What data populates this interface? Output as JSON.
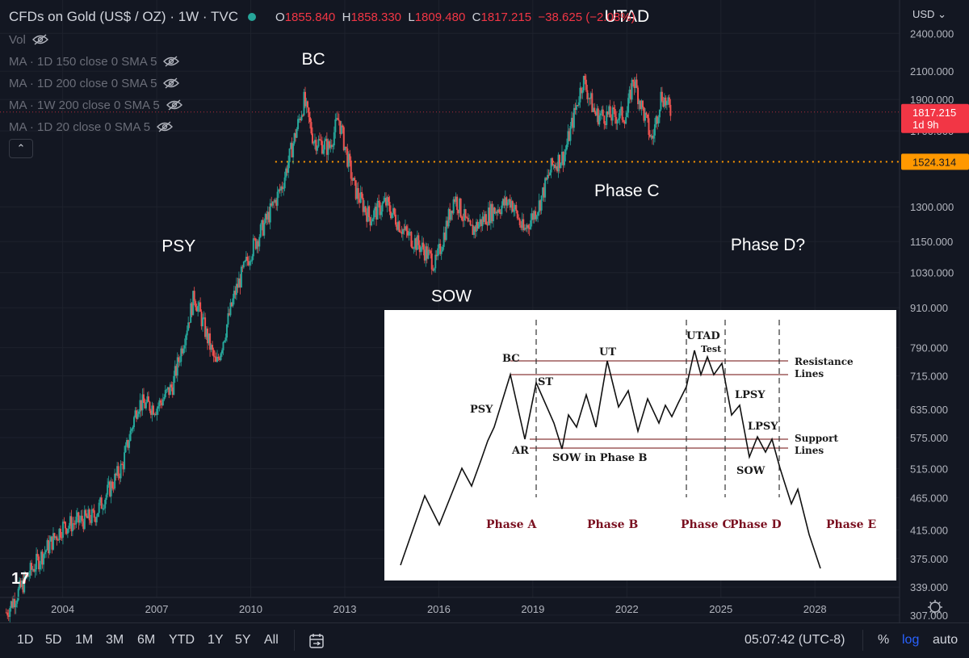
{
  "header": {
    "title": "CFDs on Gold (US$ / OZ) · 1W · TVC",
    "o_key": "O",
    "o_val": "1855.840",
    "h_key": "H",
    "h_val": "1858.330",
    "l_key": "L",
    "l_val": "1809.480",
    "c_key": "C",
    "c_val": "1817.215",
    "change": "−38.625 (−2.08%)"
  },
  "studies": [
    {
      "label": "Vol"
    },
    {
      "label": "MA · 1D 150 close 0 SMA 5"
    },
    {
      "label": "MA · 1D 200 close 0 SMA 5"
    },
    {
      "label": "MA · 1W 200 close 0 SMA 5"
    },
    {
      "label": "MA · 1D 20 close 0 SMA 5"
    }
  ],
  "axis_currency": "USD",
  "price_tag": {
    "price": "1817.215",
    "countdown": "1d 9h",
    "color": "#f23645"
  },
  "level_tag": {
    "price": "1524.314",
    "color": "#ff9800"
  },
  "range_buttons": [
    "1D",
    "5D",
    "1M",
    "3M",
    "6M",
    "YTD",
    "1Y",
    "5Y",
    "All"
  ],
  "clock": "05:07:42 (UTC-8)",
  "chart_options": [
    {
      "label": "%",
      "active": false
    },
    {
      "label": "log",
      "active": true
    },
    {
      "label": "auto",
      "active": false
    }
  ],
  "tv_logo": "17",
  "chart_data": {
    "type": "line",
    "title": "CFDs on Gold (US$ / OZ) · 1W · TVC",
    "yscale": "log",
    "ylim": [
      300,
      2700
    ],
    "xlim": [
      2002.0,
      2030.7
    ],
    "y_ticks": [
      307,
      339,
      375,
      415,
      465,
      515,
      575,
      635,
      715,
      790,
      910,
      1030,
      1150,
      1300,
      1700,
      1900,
      2100,
      2400
    ],
    "y_tick_labels": [
      "307.000",
      "339.000",
      "375.000",
      "415.000",
      "465.000",
      "515.000",
      "575.000",
      "635.000",
      "715.000",
      "790.000",
      "910.000",
      "1030.000",
      "1150.000",
      "1300.000",
      "1700.000",
      "1900.000",
      "2100.000",
      "2400.000"
    ],
    "x_ticks": [
      2004,
      2007,
      2010,
      2013,
      2016,
      2019,
      2022,
      2025,
      2028
    ],
    "x_tick_labels": [
      "2004",
      "2007",
      "2010",
      "2013",
      "2016",
      "2019",
      "2022",
      "2025",
      "2028"
    ],
    "series": [
      {
        "x": [
          2002.2,
          2003.0,
          2004.0,
          2005.0,
          2005.9,
          2006.4,
          2007.0,
          2007.5,
          2008.2,
          2008.9,
          2009.5,
          2010.0,
          2010.5,
          2011.0,
          2011.7,
          2012.0,
          2012.5,
          2012.8,
          2013.3,
          2013.8,
          2014.3,
          2014.9,
          2015.5,
          2015.9,
          2016.5,
          2017.0,
          2017.7,
          2018.3,
          2018.7,
          2019.2,
          2019.6,
          2020.0,
          2020.6,
          2021.0,
          2021.6,
          2022.0,
          2022.2,
          2022.8,
          2023.1,
          2023.4
        ],
        "y": [
          310,
          360,
          420,
          435,
          520,
          650,
          640,
          690,
          950,
          740,
          960,
          1110,
          1240,
          1400,
          1890,
          1650,
          1600,
          1780,
          1390,
          1250,
          1320,
          1190,
          1120,
          1060,
          1350,
          1190,
          1280,
          1330,
          1190,
          1310,
          1500,
          1560,
          2040,
          1800,
          1790,
          1800,
          2050,
          1640,
          1940,
          1817
        ]
      }
    ],
    "reference_lines": [
      {
        "y": 1524.314,
        "style": "dotted",
        "color": "#ff9800"
      }
    ],
    "annotations": [
      {
        "text": "BC",
        "x": 2012.0,
        "y": 2150
      },
      {
        "text": "UTAD",
        "x": 2022.0,
        "y": 2500
      },
      {
        "text": "PSY",
        "x": 2007.7,
        "y": 1110
      },
      {
        "text": "SOW",
        "x": 2016.4,
        "y": 930
      },
      {
        "text": "Phase C",
        "x": 2022.0,
        "y": 1350
      },
      {
        "text": "Phase D?",
        "x": 2026.5,
        "y": 1115
      }
    ],
    "inset_diagram": {
      "labels": [
        "BC",
        "UT",
        "UTAD",
        "Test",
        "ST",
        "PSY",
        "AR",
        "SOW in Phase B",
        "LPSY",
        "LPSY",
        "SOW",
        "Resistance",
        "Lines",
        "Support",
        "Lines"
      ],
      "phases": [
        "Phase A",
        "Phase B",
        "Phase C",
        "Phase D",
        "Phase E"
      ]
    }
  }
}
